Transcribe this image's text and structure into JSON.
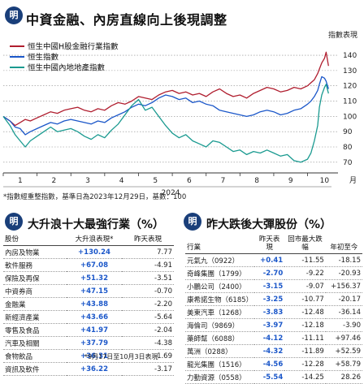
{
  "header": {
    "badge": "明",
    "title": "中資金融、內房直線向上後現調整"
  },
  "chart_data": {
    "type": "line",
    "title": "中資金融、內房直線向上後現調整",
    "ylabel": "指數表現",
    "xlabel": "月",
    "year_label": "2024",
    "months": [
      "1",
      "2",
      "3",
      "4",
      "5",
      "6",
      "7",
      "8",
      "9",
      "10"
    ],
    "yticks": [
      70,
      80,
      90,
      100,
      110,
      120,
      130,
      140
    ],
    "ylim": [
      63,
      148
    ],
    "series": [
      {
        "name": "恒生中國H股金融行業指數",
        "color": "#b01e2f",
        "x": [
          0,
          0.2,
          0.35,
          0.5,
          0.65,
          0.8,
          1.0,
          1.2,
          1.4,
          1.6,
          1.8,
          2.0,
          2.2,
          2.4,
          2.6,
          2.8,
          3.0,
          3.2,
          3.4,
          3.6,
          3.8,
          4.0,
          4.2,
          4.4,
          4.6,
          4.8,
          5.0,
          5.2,
          5.4,
          5.6,
          5.8,
          6.0,
          6.2,
          6.4,
          6.6,
          6.8,
          7.0,
          7.2,
          7.4,
          7.6,
          7.8,
          8.0,
          8.2,
          8.4,
          8.6,
          8.8,
          9.0,
          9.1,
          9.2,
          9.3,
          9.35,
          9.42,
          9.5,
          9.55,
          9.62
        ],
        "y": [
          100,
          97,
          94,
          96,
          98,
          97,
          99,
          101,
          103,
          102,
          104,
          105,
          106,
          104,
          103,
          105,
          104,
          107,
          109,
          108,
          110,
          113,
          112,
          111,
          114,
          116,
          117,
          115,
          116,
          114,
          115,
          113,
          116,
          118,
          115,
          113,
          114,
          112,
          115,
          117,
          119,
          118,
          116,
          117,
          119,
          118,
          120,
          122,
          124,
          128,
          131,
          135,
          138,
          142,
          133
        ]
      },
      {
        "name": "恒生指數",
        "color": "#1b57c9",
        "x": [
          0,
          0.2,
          0.35,
          0.5,
          0.65,
          0.8,
          1.0,
          1.2,
          1.4,
          1.6,
          1.8,
          2.0,
          2.2,
          2.4,
          2.6,
          2.8,
          3.0,
          3.2,
          3.4,
          3.6,
          3.8,
          4.0,
          4.2,
          4.4,
          4.6,
          4.8,
          5.0,
          5.2,
          5.4,
          5.6,
          5.8,
          6.0,
          6.2,
          6.4,
          6.6,
          6.8,
          7.0,
          7.2,
          7.4,
          7.6,
          7.8,
          8.0,
          8.2,
          8.4,
          8.6,
          8.8,
          9.0,
          9.1,
          9.2,
          9.3,
          9.35,
          9.42,
          9.5,
          9.55,
          9.62
        ],
        "y": [
          100,
          97,
          93,
          92,
          88,
          90,
          92,
          94,
          96,
          95,
          97,
          98,
          97,
          96,
          95,
          97,
          96,
          99,
          101,
          103,
          106,
          108,
          107,
          109,
          112,
          114,
          113,
          111,
          112,
          109,
          110,
          108,
          107,
          104,
          103,
          102,
          101,
          100,
          101,
          103,
          104,
          103,
          101,
          102,
          104,
          105,
          108,
          110,
          113,
          117,
          121,
          126,
          125,
          123,
          118
        ]
      },
      {
        "name": "恒生中國內地地產指數",
        "color": "#1a9a90",
        "x": [
          0,
          0.2,
          0.35,
          0.5,
          0.65,
          0.8,
          1.0,
          1.2,
          1.4,
          1.6,
          1.8,
          2.0,
          2.2,
          2.4,
          2.6,
          2.8,
          3.0,
          3.2,
          3.4,
          3.6,
          3.8,
          4.0,
          4.2,
          4.4,
          4.6,
          4.8,
          5.0,
          5.2,
          5.4,
          5.6,
          5.8,
          6.0,
          6.2,
          6.4,
          6.6,
          6.8,
          7.0,
          7.2,
          7.4,
          7.6,
          7.8,
          8.0,
          8.2,
          8.4,
          8.6,
          8.8,
          9.0,
          9.1,
          9.2,
          9.3,
          9.35,
          9.42,
          9.5,
          9.55,
          9.62
        ],
        "y": [
          100,
          94,
          88,
          84,
          80,
          84,
          87,
          90,
          93,
          90,
          91,
          92,
          90,
          87,
          85,
          88,
          86,
          91,
          95,
          101,
          107,
          111,
          104,
          106,
          100,
          94,
          89,
          86,
          88,
          84,
          82,
          80,
          84,
          83,
          80,
          77,
          78,
          75,
          77,
          76,
          78,
          76,
          74,
          75,
          71,
          70,
          72,
          76,
          84,
          94,
          106,
          114,
          119,
          121,
          115
        ]
      }
    ]
  },
  "chart_notes": {
    "footnote": "*指數經重整指數，基準日為2023年12月29日，基數：100"
  },
  "left_table": {
    "badge": "明",
    "title": "大升浪十大最強行業（%）",
    "headers": [
      "股份",
      "大升浪表現*",
      "昨天表現"
    ],
    "rows": [
      {
        "name": "內房及物業",
        "gain": "+130.24",
        "today": "7.77"
      },
      {
        "name": "軟件服務",
        "gain": "+67.08",
        "today": "-4.91"
      },
      {
        "name": "保險及再保",
        "gain": "+51.32",
        "today": "-3.51"
      },
      {
        "name": "中資券商",
        "gain": "+47.15",
        "today": "-0.70"
      },
      {
        "name": "金融業",
        "gain": "+43.88",
        "today": "-2.20"
      },
      {
        "name": "新經濟產業",
        "gain": "+43.66",
        "today": "-5.64"
      },
      {
        "name": "零售及食品",
        "gain": "+41.97",
        "today": "-2.04"
      },
      {
        "name": "汽車及相關",
        "gain": "+37.79",
        "today": "-4.38"
      },
      {
        "name": "食物飲品",
        "gain": "+36.31",
        "today": "1.69"
      },
      {
        "name": "資訊及軟件",
        "gain": "+36.22",
        "today": "-3.17"
      }
    ],
    "footnote": "*9月17日至10月3日表現"
  },
  "right_table": {
    "badge": "明",
    "title": "昨大跌後大彈股份（%）",
    "headers": [
      "行業",
      "昨天表現",
      "回市最大跌幅",
      "年初至今"
    ],
    "rows": [
      {
        "name": "元氣九（0922）",
        "today": "+0.41",
        "drop": "-11.55",
        "ytd": "-18.15"
      },
      {
        "name": "奇峰集團（1799）",
        "today": "-2.70",
        "drop": "-9.22",
        "ytd": "-20.93"
      },
      {
        "name": "小鵬公司（2400）",
        "today": "-3.15",
        "drop": "-9.07",
        "ytd": "+156.37"
      },
      {
        "name": "康希諾生物（6185）",
        "today": "-3.25",
        "drop": "-10.77",
        "ytd": "-20.17"
      },
      {
        "name": "美東汽車（1268）",
        "today": "-3.83",
        "drop": "-12.48",
        "ytd": "-36.14"
      },
      {
        "name": "海倫司（9869）",
        "today": "-3.97",
        "drop": "-12.18",
        "ytd": "-3.90"
      },
      {
        "name": "藥師幫（6088）",
        "today": "-4.12",
        "drop": "-11.11",
        "ytd": "+97.46"
      },
      {
        "name": "萬洲（0288）",
        "today": "-4.32",
        "drop": "-11.89",
        "ytd": "+52.59"
      },
      {
        "name": "龍光集團（1516）",
        "today": "-4.56",
        "drop": "-12.28",
        "ytd": "+58.79"
      },
      {
        "name": "力勤資源（0558）",
        "today": "-5.54",
        "drop": "-14.25",
        "ytd": "28.26"
      }
    ]
  }
}
